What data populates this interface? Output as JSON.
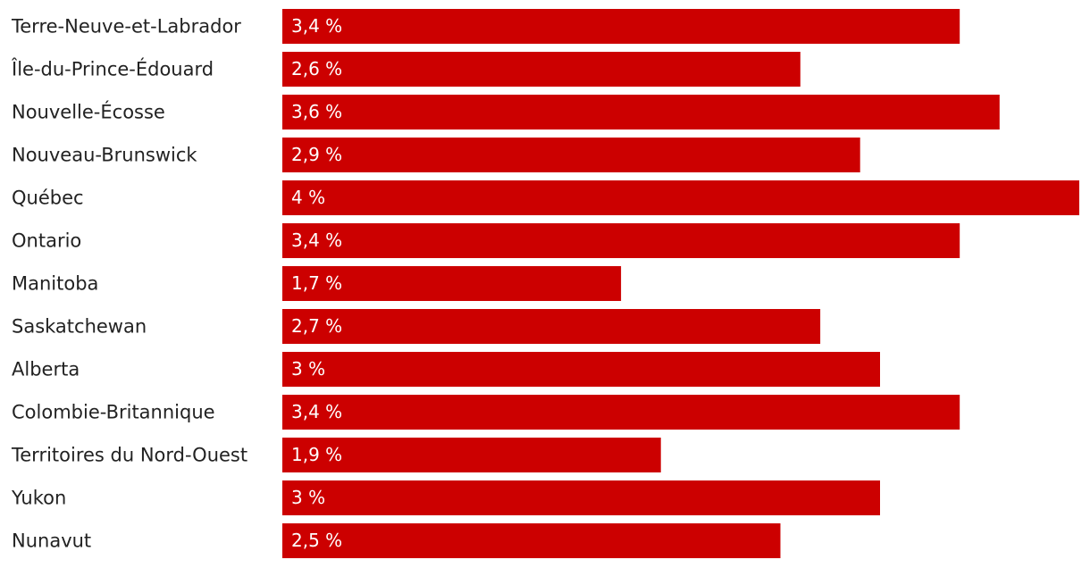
{
  "chart_data": {
    "type": "bar",
    "orientation": "horizontal",
    "color": "#cc0000",
    "categories": [
      "Terre-Neuve-et-Labrador",
      "Île-du-Prince-Édouard",
      "Nouvelle-Écosse",
      "Nouveau-Brunswick",
      "Québec",
      "Ontario",
      "Manitoba",
      "Saskatchewan",
      "Alberta",
      "Colombie-Britannique",
      "Territoires du Nord-Ouest",
      "Yukon",
      "Nunavut"
    ],
    "values": [
      3.4,
      2.6,
      3.6,
      2.9,
      4,
      3.4,
      1.7,
      2.7,
      3,
      3.4,
      1.9,
      3,
      2.5
    ],
    "value_labels": [
      "3,4 %",
      "2,6 %",
      "3,6 %",
      "2,9 %",
      "4 %",
      "3,4 %",
      "1,7 %",
      "2,7 %",
      "3 %",
      "3,4 %",
      "1,9 %",
      "3 %",
      "2,5 %"
    ]
  }
}
